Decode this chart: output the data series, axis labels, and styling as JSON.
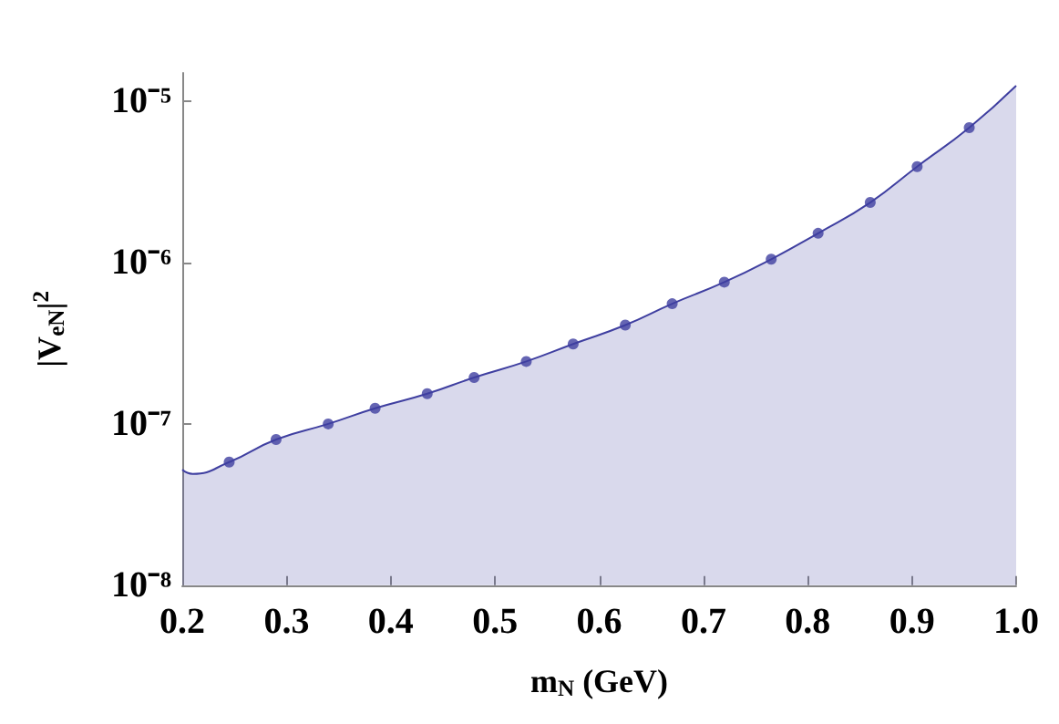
{
  "chart_data": {
    "type": "area",
    "xlabel": "m$_{N}$ (GeV)",
    "ylabel": "|V$_{eN}$|$^{2}$",
    "log": "y",
    "xlim": [
      0.2,
      1.0
    ],
    "xticks": [
      0.2,
      0.3,
      0.4,
      0.5,
      0.6,
      0.7,
      0.8,
      0.9,
      {
        "value": 1.0,
        "label": "1.0"
      }
    ],
    "ylim": [
      1e-08,
      1.5e-05
    ],
    "yticks": [
      {
        "value": 1e-08,
        "label": "10⁻⁸"
      },
      {
        "value": 1e-07,
        "label": "10⁻⁷"
      },
      {
        "value": 1e-06,
        "label": "10⁻⁶"
      },
      {
        "value": 1e-05,
        "label": "10⁻⁵"
      }
    ],
    "series": [
      {
        "type": "area",
        "color": "#3f3fa0",
        "marker": "none",
        "x": [
          0.2,
          0.21,
          0.245,
          0.29,
          0.34,
          0.385,
          0.435,
          0.48,
          0.53,
          0.575,
          0.625,
          0.67,
          0.72,
          0.765,
          0.81,
          0.86,
          0.905,
          0.955,
          1.0
        ],
        "values": [
          5.2e-08,
          4.9e-08,
          5.8e-08,
          8e-08,
          1e-07,
          1.25e-07,
          1.54e-07,
          1.94e-07,
          2.44e-07,
          3.13e-07,
          4.1e-07,
          5.56e-07,
          7.57e-07,
          1.05e-06,
          1.52e-06,
          2.36e-06,
          3.94e-06,
          6.87e-06,
          1.25e-05
        ]
      },
      {
        "type": "scatter",
        "color": "#3f3fa0",
        "marker": "circle",
        "x": [
          0.245,
          0.29,
          0.34,
          0.385,
          0.435,
          0.48,
          0.53,
          0.575,
          0.625,
          0.67,
          0.72,
          0.765,
          0.81,
          0.86,
          0.905,
          0.955
        ],
        "values": [
          5.8e-08,
          8e-08,
          1e-07,
          1.25e-07,
          1.54e-07,
          1.94e-07,
          2.44e-07,
          3.13e-07,
          4.1e-07,
          5.56e-07,
          7.57e-07,
          1.05e-06,
          1.52e-06,
          2.36e-06,
          3.94e-06,
          6.87e-06
        ]
      }
    ]
  }
}
